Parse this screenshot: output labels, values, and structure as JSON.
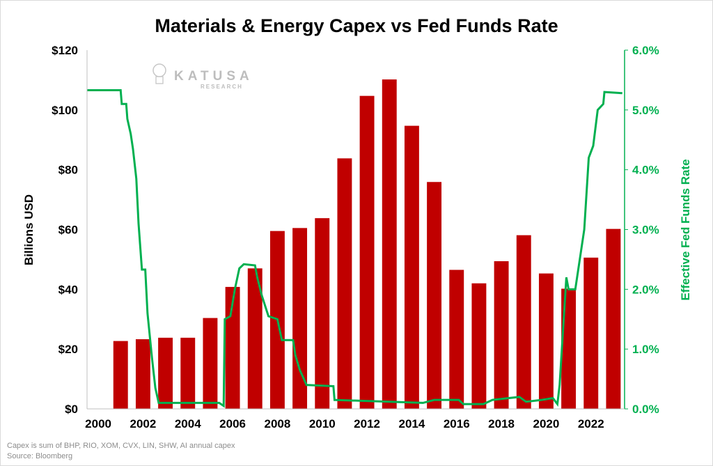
{
  "chart_data": {
    "type": "bar+line",
    "title": "Materials & Energy Capex vs Fed Funds Rate",
    "ylabel": "Billions USD",
    "y2label": "Effective Fed Funds Rate",
    "ylim": [
      0,
      120
    ],
    "y2lim": [
      0,
      6
    ],
    "yticks": [
      "$0",
      "$20",
      "$40",
      "$60",
      "$80",
      "$100",
      "$120"
    ],
    "y2ticks": [
      "0.0%",
      "1.0%",
      "2.0%",
      "3.0%",
      "4.0%",
      "5.0%",
      "6.0%"
    ],
    "xticks": [
      "2000",
      "2002",
      "2004",
      "2006",
      "2008",
      "2010",
      "2012",
      "2014",
      "2016",
      "2018",
      "2020",
      "2022"
    ],
    "xlim": [
      1999.5,
      2023.5
    ],
    "grid": false,
    "bar_color": "#c00000",
    "line_color": "#00b050",
    "bars": {
      "years": [
        2001,
        2002,
        2003,
        2004,
        2005,
        2006,
        2007,
        2008,
        2009,
        2010,
        2011,
        2012,
        2013,
        2014,
        2015,
        2016,
        2017,
        2018,
        2019,
        2020,
        2021,
        2022,
        2023
      ],
      "values": [
        22.7,
        23.3,
        23.8,
        23.8,
        30.4,
        40.8,
        47.0,
        59.5,
        60.5,
        63.8,
        83.8,
        104.7,
        110.2,
        94.7,
        75.9,
        46.5,
        42.0,
        49.4,
        58.1,
        45.3,
        40.2,
        50.6,
        60.2
      ]
    },
    "line": [
      [
        1999.5,
        5.33
      ],
      [
        2001.0,
        5.33
      ],
      [
        2001.05,
        5.1
      ],
      [
        2001.25,
        5.1
      ],
      [
        2001.3,
        4.85
      ],
      [
        2001.45,
        4.6
      ],
      [
        2001.55,
        4.35
      ],
      [
        2001.7,
        3.85
      ],
      [
        2001.8,
        3.1
      ],
      [
        2001.95,
        2.33
      ],
      [
        2002.1,
        2.33
      ],
      [
        2002.2,
        1.6
      ],
      [
        2002.4,
        0.85
      ],
      [
        2002.55,
        0.35
      ],
      [
        2002.7,
        0.1
      ],
      [
        2005.4,
        0.1
      ],
      [
        2005.6,
        0.05
      ],
      [
        2005.65,
        1.5
      ],
      [
        2005.9,
        1.55
      ],
      [
        2006.1,
        2.0
      ],
      [
        2006.3,
        2.35
      ],
      [
        2006.5,
        2.42
      ],
      [
        2007.0,
        2.4
      ],
      [
        2007.1,
        2.2
      ],
      [
        2007.3,
        1.9
      ],
      [
        2007.6,
        1.55
      ],
      [
        2008.0,
        1.5
      ],
      [
        2008.2,
        1.15
      ],
      [
        2008.7,
        1.15
      ],
      [
        2008.8,
        0.9
      ],
      [
        2009.0,
        0.65
      ],
      [
        2009.3,
        0.4
      ],
      [
        2010.5,
        0.38
      ],
      [
        2010.55,
        0.15
      ],
      [
        2014.5,
        0.1
      ],
      [
        2015.0,
        0.15
      ],
      [
        2016.1,
        0.15
      ],
      [
        2016.3,
        0.08
      ],
      [
        2017.2,
        0.08
      ],
      [
        2017.6,
        0.15
      ],
      [
        2018.8,
        0.2
      ],
      [
        2019.1,
        0.12
      ],
      [
        2019.8,
        0.15
      ],
      [
        2020.3,
        0.18
      ],
      [
        2020.5,
        0.08
      ],
      [
        2020.6,
        0.4
      ],
      [
        2020.9,
        2.2
      ],
      [
        2021.0,
        2.0
      ],
      [
        2021.3,
        2.0
      ],
      [
        2021.5,
        2.5
      ],
      [
        2021.7,
        3.0
      ],
      [
        2021.9,
        4.2
      ],
      [
        2022.1,
        4.4
      ],
      [
        2022.3,
        5.0
      ],
      [
        2022.55,
        5.1
      ],
      [
        2022.6,
        5.3
      ],
      [
        2023.4,
        5.28
      ]
    ]
  },
  "watermark": {
    "brand": "KATUSA",
    "sub": "RESEARCH"
  },
  "footnote": "Capex  is sum of BHP, RIO, XOM, CVX, LIN, SHW, AI annual capex",
  "source": "Source: Bloomberg"
}
